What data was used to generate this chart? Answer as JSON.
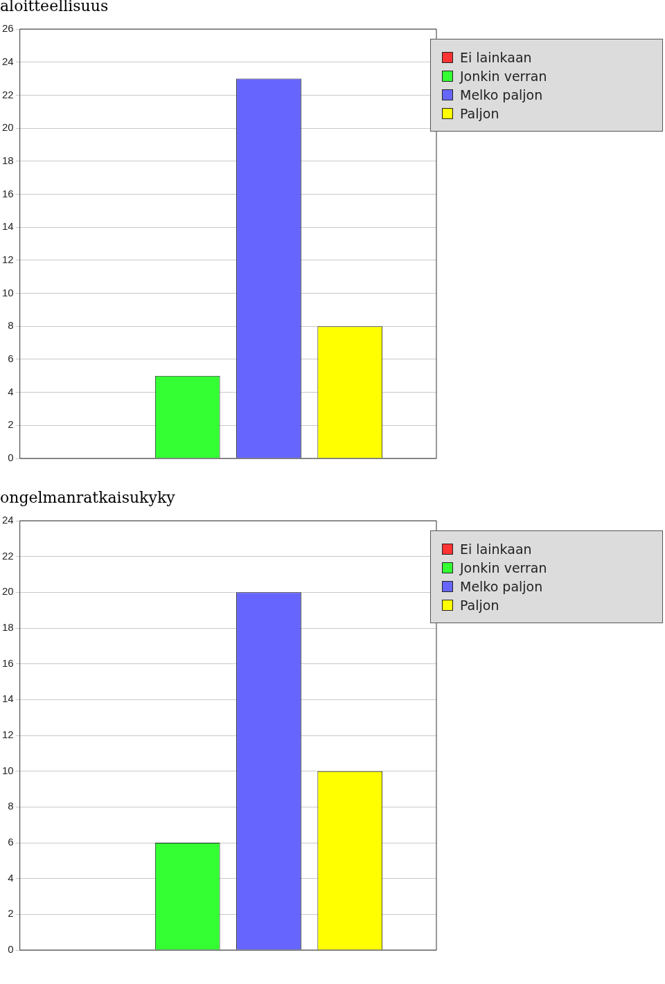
{
  "chart_data": [
    {
      "type": "bar",
      "title": "aloitteellisuus",
      "categories": [
        null
      ],
      "ylim": [
        0,
        26
      ],
      "yticks": [
        0,
        2,
        4,
        6,
        8,
        10,
        12,
        14,
        16,
        18,
        20,
        22,
        24,
        26
      ],
      "grid": "y",
      "legend": "top right",
      "tick_labels": "y",
      "series": [
        {
          "name": "Ei lainkaan",
          "color": "#ff3333",
          "values": [
            0
          ]
        },
        {
          "name": "Jonkin verran",
          "color": "#33ff33",
          "values": [
            5
          ]
        },
        {
          "name": "Melko paljon",
          "color": "#6666ff",
          "values": [
            23
          ]
        },
        {
          "name": "Paljon",
          "color": "#ffff00",
          "values": [
            8
          ]
        }
      ]
    },
    {
      "type": "bar",
      "title": "ongelmanratkaisukyky",
      "categories": [
        null
      ],
      "ylim": [
        0,
        24
      ],
      "yticks": [
        0,
        2,
        4,
        6,
        8,
        10,
        12,
        14,
        16,
        18,
        20,
        22,
        24
      ],
      "grid": "y",
      "legend": "top right",
      "tick_labels": "y",
      "series": [
        {
          "name": "Ei lainkaan",
          "color": "#ff3333",
          "values": [
            0
          ]
        },
        {
          "name": "Jonkin verran",
          "color": "#33ff33",
          "values": [
            6
          ]
        },
        {
          "name": "Melko paljon",
          "color": "#6666ff",
          "values": [
            20
          ]
        },
        {
          "name": "Paljon",
          "color": "#ffff00",
          "values": [
            10
          ]
        }
      ]
    }
  ]
}
